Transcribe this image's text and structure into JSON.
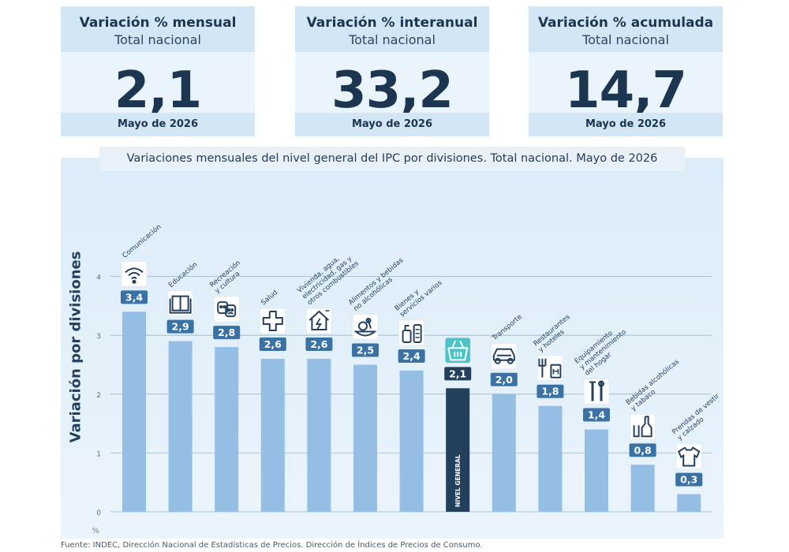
{
  "cards": [
    {
      "title": "Variación % mensual",
      "subtitle": "Total nacional",
      "value": "2,1",
      "period": "Mayo de 2026"
    },
    {
      "title": "Variación % interanual",
      "subtitle": "Total nacional",
      "value": "33,2",
      "period": "Mayo de 2026"
    },
    {
      "title": "Variación % acumulada",
      "subtitle": "Total nacional",
      "value": "14,7",
      "period": "Mayo de 2026"
    }
  ],
  "chart_data": {
    "type": "bar",
    "title": "Variaciones mensuales del nivel general del IPC por divisiones. Total nacional. Mayo de 2026",
    "ylabel": "Variación por divisiones",
    "yunit": "%",
    "ylim": [
      0,
      4
    ],
    "yticks": [
      "0",
      "1",
      "2",
      "3",
      "4"
    ],
    "grid": true,
    "categories": [
      {
        "label": [
          "Comunicación"
        ],
        "value": 3.4,
        "value_label": "3,4",
        "icon": "wifi-icon"
      },
      {
        "label": [
          "Educación"
        ],
        "value": 2.9,
        "value_label": "2,9",
        "icon": "book-icon"
      },
      {
        "label": [
          "Recreación",
          "y cultura"
        ],
        "value": 2.8,
        "value_label": "2,8",
        "icon": "theater-masks-icon"
      },
      {
        "label": [
          "Salud"
        ],
        "value": 2.6,
        "value_label": "2,6",
        "icon": "health-cross-icon"
      },
      {
        "label": [
          "Vivienda, agua,",
          "electricidad, gas y",
          "otros combustibles"
        ],
        "value": 2.6,
        "value_label": "2,6",
        "icon": "house-energy-icon"
      },
      {
        "label": [
          "Alimentos y bebidas",
          "no alcohólicas"
        ],
        "value": 2.5,
        "value_label": "2,5",
        "icon": "food-icon"
      },
      {
        "label": [
          "Bienes y",
          "servicios varios"
        ],
        "value": 2.4,
        "value_label": "2,4",
        "icon": "toiletries-icon"
      },
      {
        "label": [],
        "value": 2.1,
        "value_label": "2,1",
        "icon": "shopping-basket-icon",
        "highlight": true,
        "inner_label": "NIVEL GENERAL"
      },
      {
        "label": [
          "Transporte"
        ],
        "value": 2.0,
        "value_label": "2,0",
        "icon": "car-icon"
      },
      {
        "label": [
          "Restaurantes",
          "y hoteles"
        ],
        "value": 1.8,
        "value_label": "1,8",
        "icon": "restaurant-hotel-icon"
      },
      {
        "label": [
          "Equipamiento",
          "y mantenimiento",
          "del hogar"
        ],
        "value": 1.4,
        "value_label": "1,4",
        "icon": "tools-icon"
      },
      {
        "label": [
          "Bebidas alcohólicas",
          "y tabaco"
        ],
        "value": 0.8,
        "value_label": "0,8",
        "icon": "bottle-icon"
      },
      {
        "label": [
          "Prendas de vestir",
          "y calzado"
        ],
        "value": 0.3,
        "value_label": "0,3",
        "icon": "tshirt-icon"
      }
    ],
    "colors": {
      "bar": "#94bee4",
      "highlight": "#22405c",
      "label_bg": "#3a72a6",
      "grid": "#9db4c8"
    }
  },
  "source": "Fuente: INDEC, Dirección Nacional de Estadísticas de Precios. Dirección de Índices de Precios de Consumo."
}
